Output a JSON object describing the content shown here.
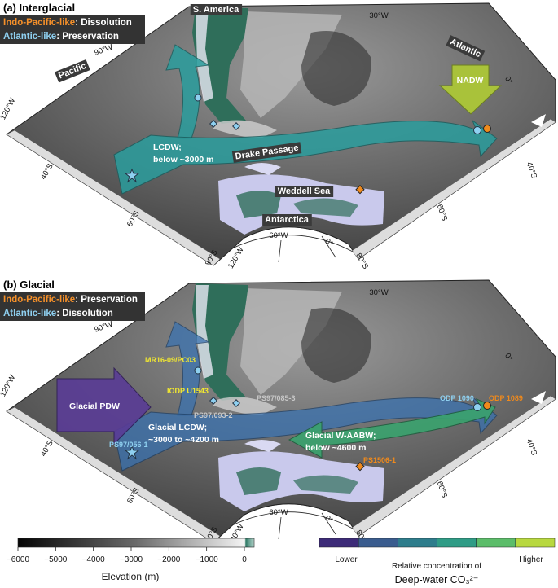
{
  "panels": [
    {
      "title": "(a) Interglacial",
      "legend": [
        {
          "label": "Indo-Pacific-like",
          "state": ": Dissolution"
        },
        {
          "label": "Atlantic-like",
          "state": ": Preservation"
        }
      ],
      "regions": [
        "S. America",
        "Atlantic",
        "Pacific",
        "Drake Passage",
        "Weddell Sea",
        "Antarctica"
      ],
      "graticule": [
        "30°W",
        "90°W",
        "0°",
        "120°W",
        "40°S",
        "60°S",
        "40°S",
        "60°S",
        "60°W",
        "80°S",
        "120°W",
        "0°",
        "80°S"
      ],
      "water_masses": {
        "nadw": "NADW",
        "lcdw": [
          "LCDW;",
          "below ~3000 m"
        ]
      }
    },
    {
      "title": "(b) Glacial",
      "legend": [
        {
          "label": "Indo-Pacific-like",
          "state": ": Preservation"
        },
        {
          "label": "Atlantic-like",
          "state": ": Dissolution"
        }
      ],
      "graticule": [
        "30°W",
        "90°W",
        "0°",
        "120°W",
        "40°S",
        "60°S",
        "40°S",
        "60°S",
        "60°W",
        "80°S",
        "120°W",
        "0°",
        "80°S"
      ],
      "water_masses": {
        "pdw": "Glacial PDW",
        "lcdw": [
          "Glacial LCDW;",
          "~3000 to ~4200 m"
        ],
        "aabw": [
          "Glacial W-AABW;",
          "below ~4600 m"
        ]
      },
      "sites": [
        "MR16-09/PC03",
        "IODP U1543",
        "PS97/085-3",
        "PS97/093-2",
        "ODP 1090",
        "ODP 1089",
        "PS97/056-1",
        "PS1506-1"
      ]
    }
  ],
  "elevation_colorbar": {
    "label": "Elevation (m)",
    "lim": [
      -6000,
      0
    ],
    "ticks": [
      {
        "value": -6000,
        "label": "−6000"
      },
      {
        "value": -5000,
        "label": "−5000"
      },
      {
        "value": -4000,
        "label": "−4000"
      },
      {
        "value": -3000,
        "label": "−3000"
      },
      {
        "value": -2000,
        "label": "−2000"
      },
      {
        "value": -1000,
        "label": "−1000"
      },
      0
    ]
  },
  "co3_colorbar": {
    "low": "Lower",
    "high": "Higher",
    "title": [
      "Relative concentration of",
      "Deep-water CO₃²⁻"
    ],
    "colors": [
      "#3d2b78",
      "#3a5c8e",
      "#2e7d8c",
      "#2f9c86",
      "#5cbd6a",
      "#b8d83f"
    ]
  }
}
